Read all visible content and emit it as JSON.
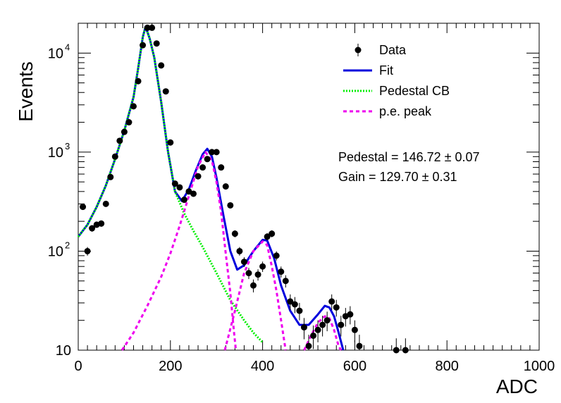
{
  "chart_data": {
    "type": "scatter",
    "xlabel": "ADC",
    "ylabel": "Events",
    "xlim": [
      0,
      1000
    ],
    "ylim": [
      10,
      20000
    ],
    "y_scale": "log",
    "x_ticks": [
      0,
      200,
      400,
      600,
      800,
      1000
    ],
    "y_ticks": [
      {
        "value": 10,
        "base": "10",
        "exp": ""
      },
      {
        "value": 100,
        "base": "10",
        "exp": "2"
      },
      {
        "value": 1000,
        "base": "10",
        "exp": "3"
      },
      {
        "value": 10000,
        "base": "10",
        "exp": "4"
      }
    ],
    "legend_position": "top-right",
    "annotations": [
      "Pedestal = 146.72 ± 0.07",
      "Gain = 129.70 ± 0.31"
    ],
    "series": [
      {
        "name": "Data",
        "style": "markers-with-errorbars",
        "color": "#000000",
        "points": [
          [
            10,
            280
          ],
          [
            20,
            100
          ],
          [
            30,
            170
          ],
          [
            40,
            185
          ],
          [
            50,
            190
          ],
          [
            60,
            300
          ],
          [
            70,
            560
          ],
          [
            80,
            900
          ],
          [
            90,
            1300
          ],
          [
            100,
            1600
          ],
          [
            110,
            2000
          ],
          [
            120,
            2900
          ],
          [
            130,
            5200
          ],
          [
            140,
            12000
          ],
          [
            150,
            18000
          ],
          [
            160,
            18000
          ],
          [
            170,
            12500
          ],
          [
            180,
            7500
          ],
          [
            190,
            4100
          ],
          [
            200,
            1250
          ],
          [
            210,
            480
          ],
          [
            220,
            440
          ],
          [
            230,
            330
          ],
          [
            240,
            400
          ],
          [
            250,
            380
          ],
          [
            260,
            570
          ],
          [
            270,
            700
          ],
          [
            280,
            850
          ],
          [
            290,
            1000
          ],
          [
            300,
            1000
          ],
          [
            310,
            700
          ],
          [
            320,
            450
          ],
          [
            330,
            290
          ],
          [
            340,
            150
          ],
          [
            350,
            100
          ],
          [
            360,
            78
          ],
          [
            370,
            60
          ],
          [
            380,
            45
          ],
          [
            390,
            58
          ],
          [
            400,
            70
          ],
          [
            410,
            140
          ],
          [
            420,
            150
          ],
          [
            430,
            90
          ],
          [
            440,
            62
          ],
          [
            450,
            50
          ],
          [
            460,
            31
          ],
          [
            470,
            29
          ],
          [
            480,
            25
          ],
          [
            490,
            17
          ],
          [
            500,
            11
          ],
          [
            510,
            14
          ],
          [
            520,
            16
          ],
          [
            530,
            18
          ],
          [
            540,
            20
          ],
          [
            550,
            31
          ],
          [
            560,
            27
          ],
          [
            570,
            18
          ],
          [
            580,
            22
          ],
          [
            590,
            23
          ],
          [
            600,
            16
          ],
          [
            610,
            11
          ],
          [
            690,
            10
          ],
          [
            710,
            10
          ]
        ]
      },
      {
        "name": "Fit",
        "style": "solid",
        "color": "#0000dd",
        "points": [
          [
            0,
            140
          ],
          [
            20,
            185
          ],
          [
            40,
            280
          ],
          [
            60,
            460
          ],
          [
            80,
            850
          ],
          [
            100,
            1650
          ],
          [
            120,
            3600
          ],
          [
            130,
            7000
          ],
          [
            140,
            14500
          ],
          [
            146,
            18500
          ],
          [
            155,
            14000
          ],
          [
            165,
            9000
          ],
          [
            180,
            3200
          ],
          [
            195,
            1000
          ],
          [
            210,
            400
          ],
          [
            225,
            320
          ],
          [
            240,
            420
          ],
          [
            255,
            650
          ],
          [
            270,
            950
          ],
          [
            280,
            1080
          ],
          [
            290,
            900
          ],
          [
            300,
            550
          ],
          [
            315,
            230
          ],
          [
            330,
            100
          ],
          [
            345,
            65
          ],
          [
            360,
            72
          ],
          [
            380,
            100
          ],
          [
            400,
            130
          ],
          [
            410,
            128
          ],
          [
            425,
            85
          ],
          [
            440,
            45
          ],
          [
            460,
            25
          ],
          [
            480,
            18
          ],
          [
            500,
            18
          ],
          [
            520,
            23
          ],
          [
            535,
            28
          ],
          [
            545,
            27
          ],
          [
            555,
            22
          ],
          [
            565,
            15
          ],
          [
            575,
            10
          ]
        ]
      },
      {
        "name": "Pedestal CB",
        "style": "dotted",
        "color": "#00ee00",
        "points": [
          [
            0,
            140
          ],
          [
            20,
            185
          ],
          [
            40,
            280
          ],
          [
            60,
            460
          ],
          [
            80,
            850
          ],
          [
            100,
            1650
          ],
          [
            120,
            3600
          ],
          [
            130,
            7000
          ],
          [
            140,
            14500
          ],
          [
            146,
            18500
          ],
          [
            155,
            14000
          ],
          [
            165,
            9000
          ],
          [
            180,
            3200
          ],
          [
            195,
            1000
          ],
          [
            210,
            400
          ],
          [
            230,
            240
          ],
          [
            250,
            160
          ],
          [
            270,
            110
          ],
          [
            300,
            60
          ],
          [
            330,
            32
          ],
          [
            360,
            20
          ],
          [
            380,
            15
          ],
          [
            400,
            12
          ]
        ]
      },
      {
        "name": "p.e. peak",
        "style": "dashed",
        "color": "#ee00ee",
        "points": [
          [
            95,
            10
          ],
          [
            120,
            15
          ],
          [
            150,
            28
          ],
          [
            180,
            55
          ],
          [
            200,
            95
          ],
          [
            220,
            180
          ],
          [
            240,
            360
          ],
          [
            260,
            720
          ],
          [
            276,
            1000
          ],
          [
            290,
            820
          ],
          [
            300,
            500
          ],
          [
            310,
            250
          ],
          [
            320,
            95
          ],
          [
            330,
            38
          ],
          [
            338,
            15
          ],
          [
            342,
            10
          ]
        ]
      },
      {
        "name": "p.e. peak",
        "style": "dashed",
        "color": "#ee00ee",
        "points": [
          [
            318,
            10
          ],
          [
            340,
            25
          ],
          [
            360,
            60
          ],
          [
            380,
            100
          ],
          [
            400,
            125
          ],
          [
            410,
            115
          ],
          [
            420,
            70
          ],
          [
            430,
            40
          ],
          [
            440,
            20
          ],
          [
            450,
            10
          ]
        ]
      },
      {
        "name": "p.e. peak",
        "style": "dashed",
        "color": "#ee00ee",
        "points": [
          [
            490,
            10
          ],
          [
            505,
            14
          ],
          [
            520,
            19
          ],
          [
            535,
            22
          ],
          [
            545,
            21
          ],
          [
            555,
            16
          ],
          [
            565,
            11
          ],
          [
            570,
            10
          ]
        ]
      }
    ]
  },
  "legend": [
    {
      "label": "Data",
      "kind": "marker",
      "color": "#000000"
    },
    {
      "label": "Fit",
      "kind": "solid",
      "color": "#0000dd"
    },
    {
      "label": "Pedestal CB",
      "kind": "dotted",
      "color": "#00ee00"
    },
    {
      "label": "p.e. peak",
      "kind": "dashed",
      "color": "#ee00ee"
    }
  ]
}
